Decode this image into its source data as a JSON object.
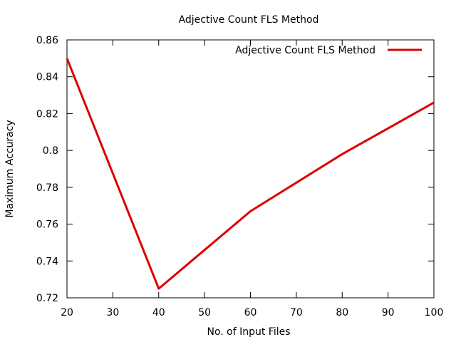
{
  "chart_data": {
    "type": "line",
    "title": "Adjective Count  FLS Method",
    "xlabel": "No. of Input Files",
    "ylabel": "Maximum Accuracy",
    "xlim": [
      20,
      100
    ],
    "ylim": [
      0.72,
      0.86
    ],
    "x_ticks": [
      20,
      30,
      40,
      50,
      60,
      70,
      80,
      90,
      100
    ],
    "x_tick_labels": [
      "20",
      "30",
      "40",
      "50",
      "60",
      "70",
      "80",
      "90",
      "100"
    ],
    "y_ticks": [
      0.72,
      0.74,
      0.76,
      0.78,
      0.8,
      0.82,
      0.84,
      0.86
    ],
    "y_tick_labels": [
      "0.72",
      "0.74",
      "0.76",
      "0.78",
      "0.8",
      "0.82",
      "0.84",
      "0.86"
    ],
    "grid": false,
    "legend_position": "top-right",
    "series": [
      {
        "name": "Adjective Count  FLS Method",
        "color": "#dd0000",
        "x": [
          20,
          40,
          60,
          80,
          100
        ],
        "y": [
          0.85,
          0.725,
          0.767,
          0.798,
          0.826
        ]
      }
    ]
  }
}
